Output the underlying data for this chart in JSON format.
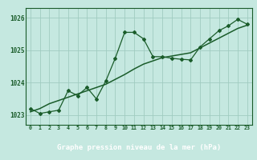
{
  "title": "Graphe pression niveau de la mer (hPa)",
  "bg_color": "#c5e8e0",
  "plot_bg_color": "#c5e8e0",
  "line_color": "#1a5c2a",
  "grid_color": "#a0ccc0",
  "label_bar_color": "#2a6b3a",
  "label_text_color": "#1a3a1a",
  "x_values": [
    0,
    1,
    2,
    3,
    4,
    5,
    6,
    7,
    8,
    9,
    10,
    11,
    12,
    13,
    14,
    15,
    16,
    17,
    18,
    19,
    20,
    21,
    22,
    23
  ],
  "y_data": [
    1023.2,
    1023.05,
    1023.1,
    1023.15,
    1023.75,
    1023.6,
    1023.85,
    1023.5,
    1024.05,
    1024.75,
    1025.55,
    1025.55,
    1025.35,
    1024.8,
    1024.8,
    1024.75,
    1024.72,
    1024.7,
    1025.1,
    1025.35,
    1025.6,
    1025.75,
    1025.95,
    1025.8
  ],
  "y_trend": [
    1023.1,
    1023.2,
    1023.35,
    1023.45,
    1023.55,
    1023.65,
    1023.75,
    1023.85,
    1023.95,
    1024.1,
    1024.25,
    1024.42,
    1024.57,
    1024.67,
    1024.77,
    1024.82,
    1024.87,
    1024.92,
    1025.07,
    1025.22,
    1025.37,
    1025.52,
    1025.67,
    1025.77
  ],
  "ylim": [
    1022.7,
    1026.3
  ],
  "yticks": [
    1023,
    1024,
    1025,
    1026
  ],
  "xlim": [
    -0.5,
    23.5
  ],
  "xticks": [
    0,
    1,
    2,
    3,
    4,
    5,
    6,
    7,
    8,
    9,
    10,
    11,
    12,
    13,
    14,
    15,
    16,
    17,
    18,
    19,
    20,
    21,
    22,
    23
  ]
}
